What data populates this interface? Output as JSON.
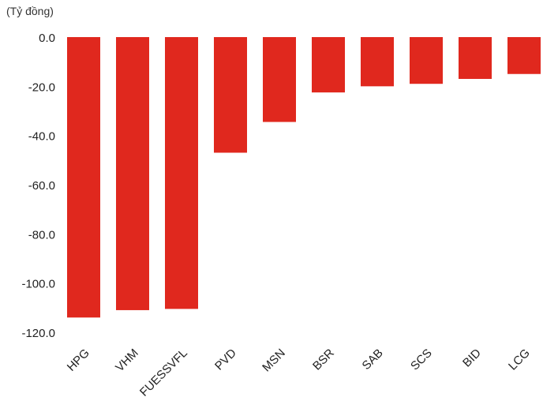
{
  "chart_data": {
    "type": "bar",
    "unit_label": "(Tỷ đồng)",
    "categories": [
      "HPG",
      "VHM",
      "FUESSVFL",
      "PVD",
      "MSN",
      "BSR",
      "SAB",
      "SCS",
      "BID",
      "LCG"
    ],
    "values": [
      -114.0,
      -111.0,
      -110.5,
      -47.0,
      -34.5,
      -22.5,
      -20.0,
      -19.0,
      -17.0,
      -15.0
    ],
    "yticks": [
      "0.0",
      "-20.0",
      "-40.0",
      "-60.0",
      "-80.0",
      "-100.0",
      "-120.0"
    ],
    "ylim": [
      -120,
      0
    ],
    "grid": false,
    "bar_color": "#e0281e"
  }
}
